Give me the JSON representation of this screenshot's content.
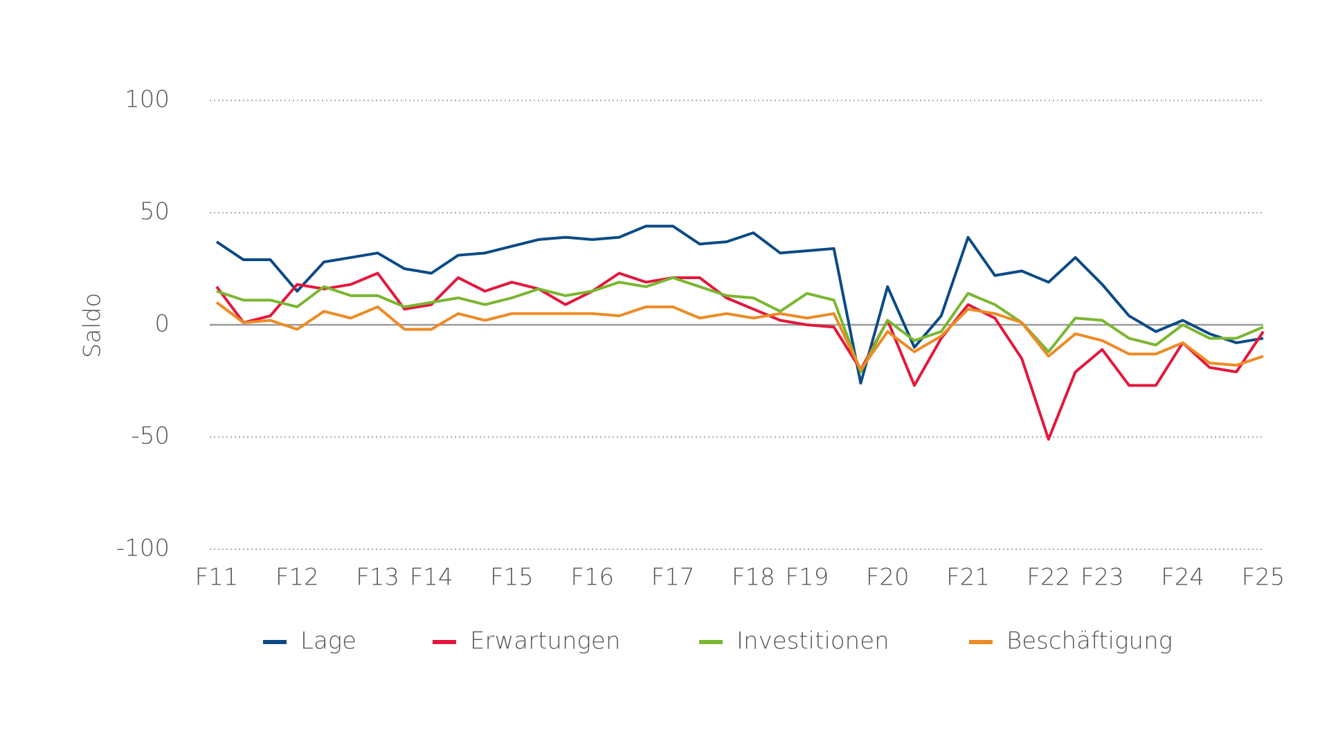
{
  "chart_data": {
    "type": "line",
    "y_label": "Saldo",
    "categories": [
      "F11",
      null,
      null,
      "F12",
      null,
      null,
      "F13",
      null,
      "F14",
      null,
      null,
      "F15",
      null,
      null,
      "F16",
      null,
      null,
      "F17",
      null,
      null,
      "F18",
      null,
      "F19",
      null,
      null,
      "F20",
      null,
      null,
      "F21",
      null,
      null,
      "F22",
      null,
      "F23",
      null,
      null,
      "F24",
      null,
      null,
      "F25"
    ],
    "series": [
      {
        "name": "Lage",
        "color": "#0b4a86",
        "values": [
          37,
          29,
          29,
          15,
          28,
          30,
          32,
          25,
          23,
          31,
          32,
          35,
          38,
          39,
          38,
          39,
          44,
          44,
          36,
          37,
          41,
          32,
          33,
          34,
          -26,
          17,
          -10,
          4,
          39,
          22,
          24,
          19,
          30,
          18,
          4,
          -3,
          2,
          -4,
          -8,
          -6
        ]
      },
      {
        "name": "Erwartungen",
        "color": "#e3173c",
        "values": [
          17,
          1,
          4,
          18,
          16,
          18,
          23,
          7,
          9,
          21,
          15,
          19,
          16,
          9,
          15,
          23,
          19,
          21,
          21,
          12,
          7,
          2,
          0,
          -1,
          -20,
          2,
          -27,
          -6,
          9,
          3,
          -15,
          -51,
          -21,
          -11,
          -27,
          -27,
          -8,
          -19,
          -21,
          -3
        ]
      },
      {
        "name": "Investitionen",
        "color": "#7ab630",
        "values": [
          15,
          11,
          11,
          8,
          17,
          13,
          13,
          8,
          10,
          12,
          9,
          12,
          16,
          13,
          15,
          19,
          17,
          21,
          17,
          13,
          12,
          6,
          14,
          11,
          -21,
          2,
          -7,
          -3,
          14,
          9,
          1,
          -12,
          3,
          2,
          -6,
          -9,
          0,
          -6,
          -6,
          -1
        ]
      },
      {
        "name": "Beschäftigung",
        "color": "#ee8a23",
        "values": [
          10,
          1,
          2,
          -2,
          6,
          3,
          8,
          -2,
          -2,
          5,
          2,
          5,
          5,
          5,
          5,
          4,
          8,
          8,
          3,
          5,
          3,
          5,
          3,
          5,
          -20,
          -3,
          -12,
          -5,
          7,
          5,
          1,
          -14,
          -4,
          -7,
          -13,
          -13,
          -8,
          -17,
          -18,
          -14
        ]
      }
    ],
    "ylim": [
      -100,
      100
    ],
    "yticks": [
      -100,
      -50,
      0,
      50,
      100
    ],
    "grid": true,
    "legend": "bottom"
  }
}
